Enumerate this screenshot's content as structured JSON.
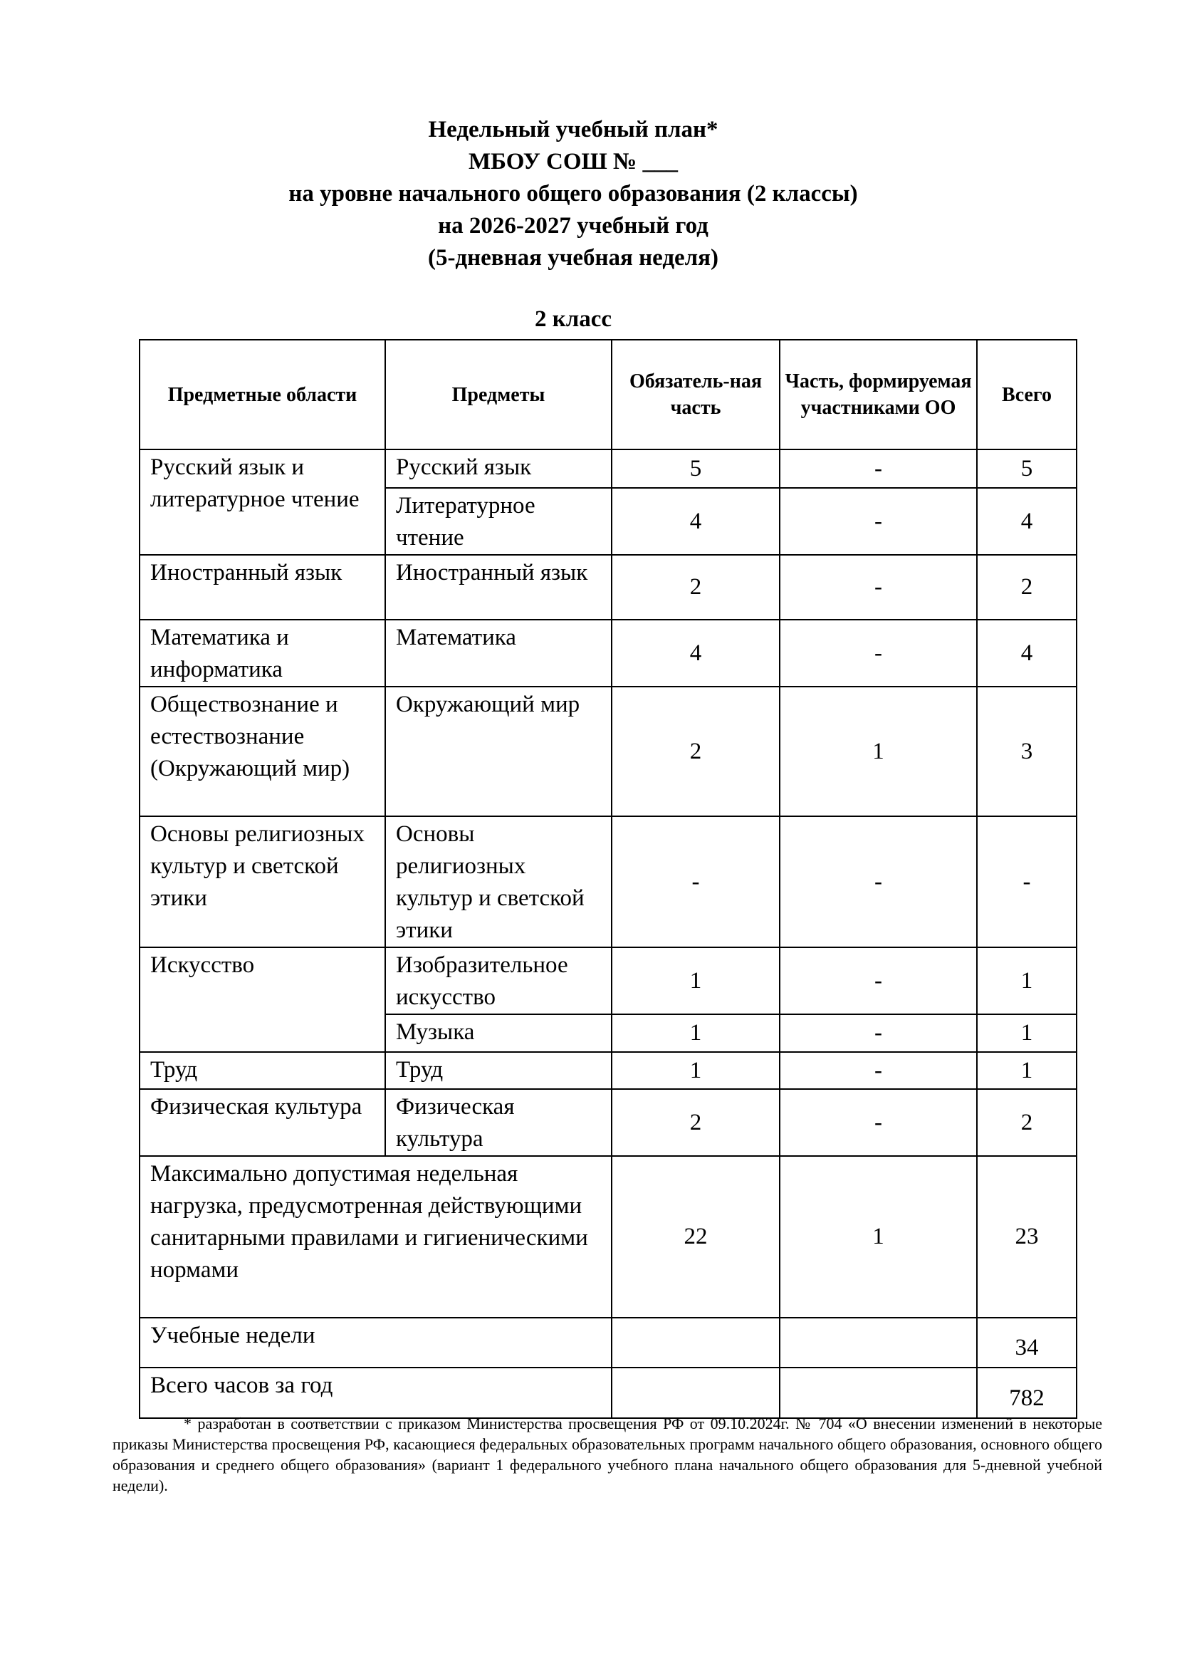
{
  "title": {
    "line1": "Недельный учебный план*",
    "line2": "МБОУ СОШ № ___",
    "line3": "на уровне начального общего образования (2 классы)",
    "line4": "на 2026-2027 учебный год",
    "line5": "(5-дневная учебная неделя)"
  },
  "grade": "2 класс",
  "table": {
    "headers": [
      "Предметные области",
      "Предметы",
      "Обязатель-ная часть",
      "Часть, формируемая участниками ОО",
      "Всего"
    ],
    "rows": [
      {
        "area": "Русский язык и литературное чтение",
        "subject": "Русский язык",
        "mandatory": "5",
        "optional": "-",
        "total": "5"
      },
      {
        "subject": "Литературное чтение",
        "mandatory": "4",
        "optional": "-",
        "total": "4"
      },
      {
        "area": "Иностранный язык",
        "subject": "Иностранный язык",
        "mandatory": "2",
        "optional": "-",
        "total": "2"
      },
      {
        "area": "Математика и информатика",
        "subject": "Математика",
        "mandatory": "4",
        "optional": "-",
        "total": "4"
      },
      {
        "area": "Обществознание и естествознание (Окружающий мир)",
        "subject": "Окружающий мир",
        "mandatory": "2",
        "optional": "1",
        "total": "3"
      },
      {
        "area": "Основы религиозных культур и светской этики",
        "subject": "Основы религиозных культур и светской этики",
        "mandatory": "-",
        "optional": "-",
        "total": "-"
      },
      {
        "area": "Искусство",
        "subject": "Изобразительное искусство",
        "mandatory": "1",
        "optional": "-",
        "total": "1"
      },
      {
        "subject": "Музыка",
        "mandatory": "1",
        "optional": "-",
        "total": "1"
      },
      {
        "area": "Труд",
        "subject": "Труд",
        "mandatory": "1",
        "optional": "-",
        "total": "1"
      },
      {
        "area": "Физическая культура",
        "subject": "Физическая культура",
        "mandatory": "2",
        "optional": "-",
        "total": "2"
      }
    ],
    "max_load": {
      "label": "Максимально допустимая недельная нагрузка, предусмотренная действующими санитарными правилами и гигиеническими нормами",
      "mandatory": "22",
      "optional": "1",
      "total": "23"
    },
    "weeks": {
      "label": "Учебные недели",
      "total": "34"
    },
    "year_total": {
      "label": "Всего часов за год",
      "total": "782"
    }
  },
  "footnote": "* разработан в соответствии с приказом Министерства просвещения РФ от 09.10.2024г. № 704 «О внесении изменений в некоторые приказы Министерства просвещения РФ, касающиеся федеральных образовательных программ начального общего образования, основного общего образования и среднего общего образования» (вариант 1 федерального учебного плана начального общего образования для 5-дневной учебной недели)."
}
